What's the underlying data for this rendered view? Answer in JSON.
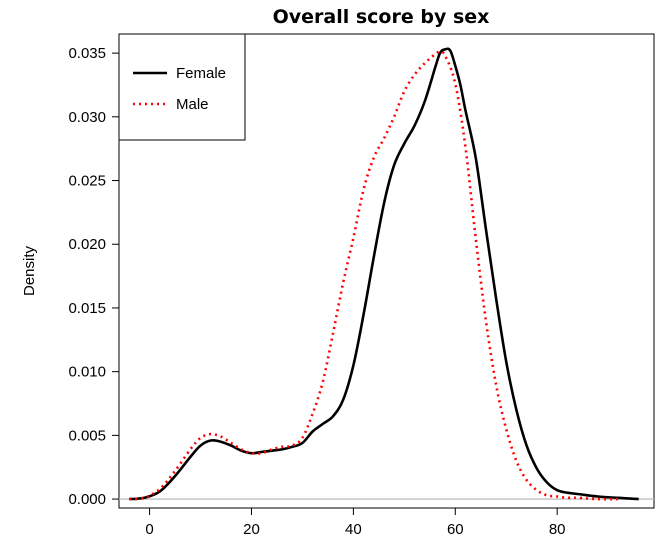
{
  "chart_data": {
    "type": "line",
    "title": "Overall score by sex",
    "xlabel": "",
    "ylabel": "Density",
    "xlim": [
      -6,
      99
    ],
    "ylim": [
      -0.0007,
      0.0365
    ],
    "xticks": [
      0,
      20,
      40,
      60,
      80
    ],
    "yticks": [
      0.0,
      0.005,
      0.01,
      0.015,
      0.02,
      0.025,
      0.03,
      0.035
    ],
    "ytick_labels": [
      "0.000",
      "0.005",
      "0.010",
      "0.015",
      "0.020",
      "0.025",
      "0.030",
      "0.035"
    ],
    "xtick_labels": [
      "0",
      "20",
      "40",
      "60",
      "80"
    ],
    "reference_line_y": 0,
    "legend": {
      "position": "top-left"
    },
    "series": [
      {
        "name": "Female",
        "color": "#000000",
        "style": "solid",
        "x": [
          -4,
          -1,
          2,
          5,
          8,
          10,
          12,
          14,
          16,
          18,
          20,
          22,
          24,
          26,
          28,
          30,
          32,
          34,
          36,
          38,
          40,
          42,
          44,
          46,
          48,
          50,
          52,
          54,
          56,
          57,
          58,
          59,
          60,
          61,
          62,
          64,
          66,
          68,
          70,
          72,
          74,
          76,
          78,
          80,
          82,
          84,
          88,
          92,
          96
        ],
        "y": [
          0.0,
          0.0001,
          0.0006,
          0.0018,
          0.0033,
          0.0042,
          0.0046,
          0.0045,
          0.0042,
          0.0038,
          0.0036,
          0.0037,
          0.0038,
          0.0039,
          0.0041,
          0.0044,
          0.0053,
          0.0059,
          0.0065,
          0.0078,
          0.0105,
          0.0145,
          0.019,
          0.0232,
          0.0262,
          0.0279,
          0.0293,
          0.0312,
          0.0338,
          0.035,
          0.0353,
          0.0352,
          0.034,
          0.0325,
          0.0305,
          0.0268,
          0.0212,
          0.0158,
          0.0108,
          0.007,
          0.0042,
          0.0024,
          0.0013,
          0.0007,
          0.0005,
          0.0004,
          0.0002,
          0.0001,
          0.0
        ]
      },
      {
        "name": "Male",
        "color": "#ff0000",
        "style": "dotted",
        "x": [
          -4,
          -1,
          2,
          5,
          8,
          10,
          12,
          14,
          16,
          18,
          20,
          22,
          24,
          26,
          28,
          30,
          32,
          34,
          36,
          38,
          40,
          42,
          44,
          46,
          48,
          50,
          52,
          54,
          56,
          57,
          58,
          60,
          62,
          64,
          66,
          68,
          70,
          72,
          74,
          76,
          78,
          80,
          82,
          84,
          88,
          92
        ],
        "y": [
          0.0,
          0.0001,
          0.0008,
          0.0022,
          0.0039,
          0.0048,
          0.0051,
          0.0049,
          0.0044,
          0.0039,
          0.0036,
          0.0036,
          0.0039,
          0.0041,
          0.0042,
          0.0048,
          0.0067,
          0.0092,
          0.013,
          0.017,
          0.0205,
          0.0243,
          0.0268,
          0.0283,
          0.03,
          0.032,
          0.0333,
          0.0342,
          0.0349,
          0.0351,
          0.0348,
          0.0326,
          0.0276,
          0.0205,
          0.014,
          0.009,
          0.0055,
          0.003,
          0.0015,
          0.0007,
          0.0003,
          0.0002,
          0.0001,
          0.0001,
          0.0,
          0.0
        ]
      }
    ]
  }
}
